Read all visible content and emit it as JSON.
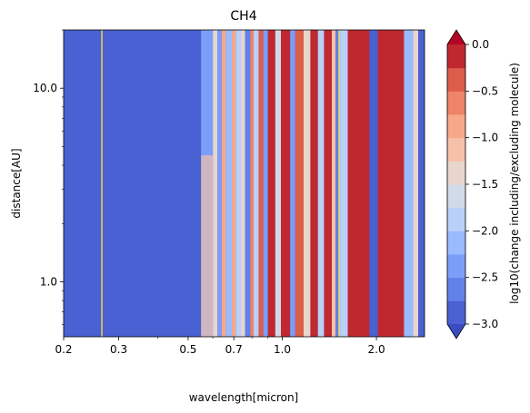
{
  "chart_data": {
    "type": "heatmap",
    "title": "CH4",
    "xlabel": "wavelength[micron]",
    "ylabel": "distance[AU]",
    "x_scale": "log",
    "y_scale": "log",
    "xlim": [
      0.2,
      2.85
    ],
    "ylim": [
      0.52,
      20.0
    ],
    "x_ticks": [
      {
        "value": 0.2,
        "label": "0.2"
      },
      {
        "value": 0.3,
        "label": "0.3"
      },
      {
        "value": 0.5,
        "label": "0.5"
      },
      {
        "value": 0.7,
        "label": "0.7"
      },
      {
        "value": 1.0,
        "label": "1.0"
      },
      {
        "value": 2.0,
        "label": "2.0"
      }
    ],
    "y_ticks": [
      {
        "value": 1.0,
        "label": "1.0"
      },
      {
        "value": 10.0,
        "label": "10.0"
      }
    ],
    "colorbar": {
      "label": "log10(change including/excluding molecule)",
      "levels": [
        -3.0,
        -2.75,
        -2.5,
        -2.25,
        -2.0,
        -1.75,
        -1.5,
        -1.25,
        -1.0,
        -0.75,
        -0.5,
        -0.25,
        0.0
      ],
      "ticks": [
        {
          "value": -3.0,
          "label": "−3.0"
        },
        {
          "value": -2.5,
          "label": "−2.5"
        },
        {
          "value": -2.0,
          "label": "−2.0"
        },
        {
          "value": -1.5,
          "label": "−1.5"
        },
        {
          "value": -1.0,
          "label": "−1.0"
        },
        {
          "value": -0.5,
          "label": "−0.5"
        },
        {
          "value": 0.0,
          "label": "0.0"
        }
      ],
      "colors": [
        "#4961d2",
        "#6282ea",
        "#7b9ff9",
        "#9abbff",
        "#b9d0f9",
        "#d1dae9",
        "#e8d6cc",
        "#f5c1a9",
        "#f7a889",
        "#ee8468",
        "#dc5d4a",
        "#c0282f"
      ],
      "extend_under": "#3b4cc0",
      "extend_over": "#b40426",
      "cmap": "coolwarm"
    },
    "bands": [
      {
        "x0": 0.2,
        "x1": 0.55,
        "value": -3.0
      },
      {
        "x0": 0.55,
        "x1": 0.6,
        "value": -2.4,
        "variable": true
      },
      {
        "x0": 0.6,
        "x1": 0.62,
        "value": -1.5
      },
      {
        "x0": 0.62,
        "x1": 0.64,
        "value": -2.5
      },
      {
        "x0": 0.64,
        "x1": 0.66,
        "value": -0.8
      },
      {
        "x0": 0.66,
        "x1": 0.69,
        "value": -2.2
      },
      {
        "x0": 0.69,
        "x1": 0.71,
        "value": -1.0
      },
      {
        "x0": 0.71,
        "x1": 0.74,
        "value": -2.0
      },
      {
        "x0": 0.74,
        "x1": 0.76,
        "value": -1.3
      },
      {
        "x0": 0.76,
        "x1": 0.79,
        "value": -2.6
      },
      {
        "x0": 0.79,
        "x1": 0.81,
        "value": -0.6
      },
      {
        "x0": 0.81,
        "x1": 0.84,
        "value": -2.0
      },
      {
        "x0": 0.84,
        "x1": 0.87,
        "value": -0.3
      },
      {
        "x0": 0.87,
        "x1": 0.9,
        "value": -2.3
      },
      {
        "x0": 0.9,
        "x1": 0.95,
        "value": -0.2
      },
      {
        "x0": 0.95,
        "x1": 0.99,
        "value": -1.6
      },
      {
        "x0": 0.99,
        "x1": 1.06,
        "value": -0.1
      },
      {
        "x0": 1.06,
        "x1": 1.1,
        "value": -2.4
      },
      {
        "x0": 1.1,
        "x1": 1.17,
        "value": -0.3
      },
      {
        "x0": 1.17,
        "x1": 1.23,
        "value": -1.4
      },
      {
        "x0": 1.23,
        "x1": 1.3,
        "value": -0.2
      },
      {
        "x0": 1.3,
        "x1": 1.36,
        "value": -2.0
      },
      {
        "x0": 1.36,
        "x1": 1.44,
        "value": -0.1
      },
      {
        "x0": 1.44,
        "x1": 1.48,
        "value": -1.2
      },
      {
        "x0": 1.48,
        "x1": 1.53,
        "value": -2.6
      },
      {
        "x0": 1.53,
        "x1": 1.62,
        "value": -1.8
      },
      {
        "x0": 1.62,
        "x1": 1.9,
        "value": -0.1
      },
      {
        "x0": 1.9,
        "x1": 2.02,
        "value": -2.8
      },
      {
        "x0": 2.02,
        "x1": 2.45,
        "value": -0.1
      },
      {
        "x0": 2.45,
        "x1": 2.62,
        "value": -2.2
      },
      {
        "x0": 2.62,
        "x1": 2.72,
        "value": -1.4
      },
      {
        "x0": 2.72,
        "x1": 2.85,
        "value": -2.9
      }
    ],
    "lines": [
      {
        "x": 0.265,
        "color": "#f5d142"
      },
      {
        "x": 1.52,
        "color": "#f5e85a"
      }
    ]
  }
}
